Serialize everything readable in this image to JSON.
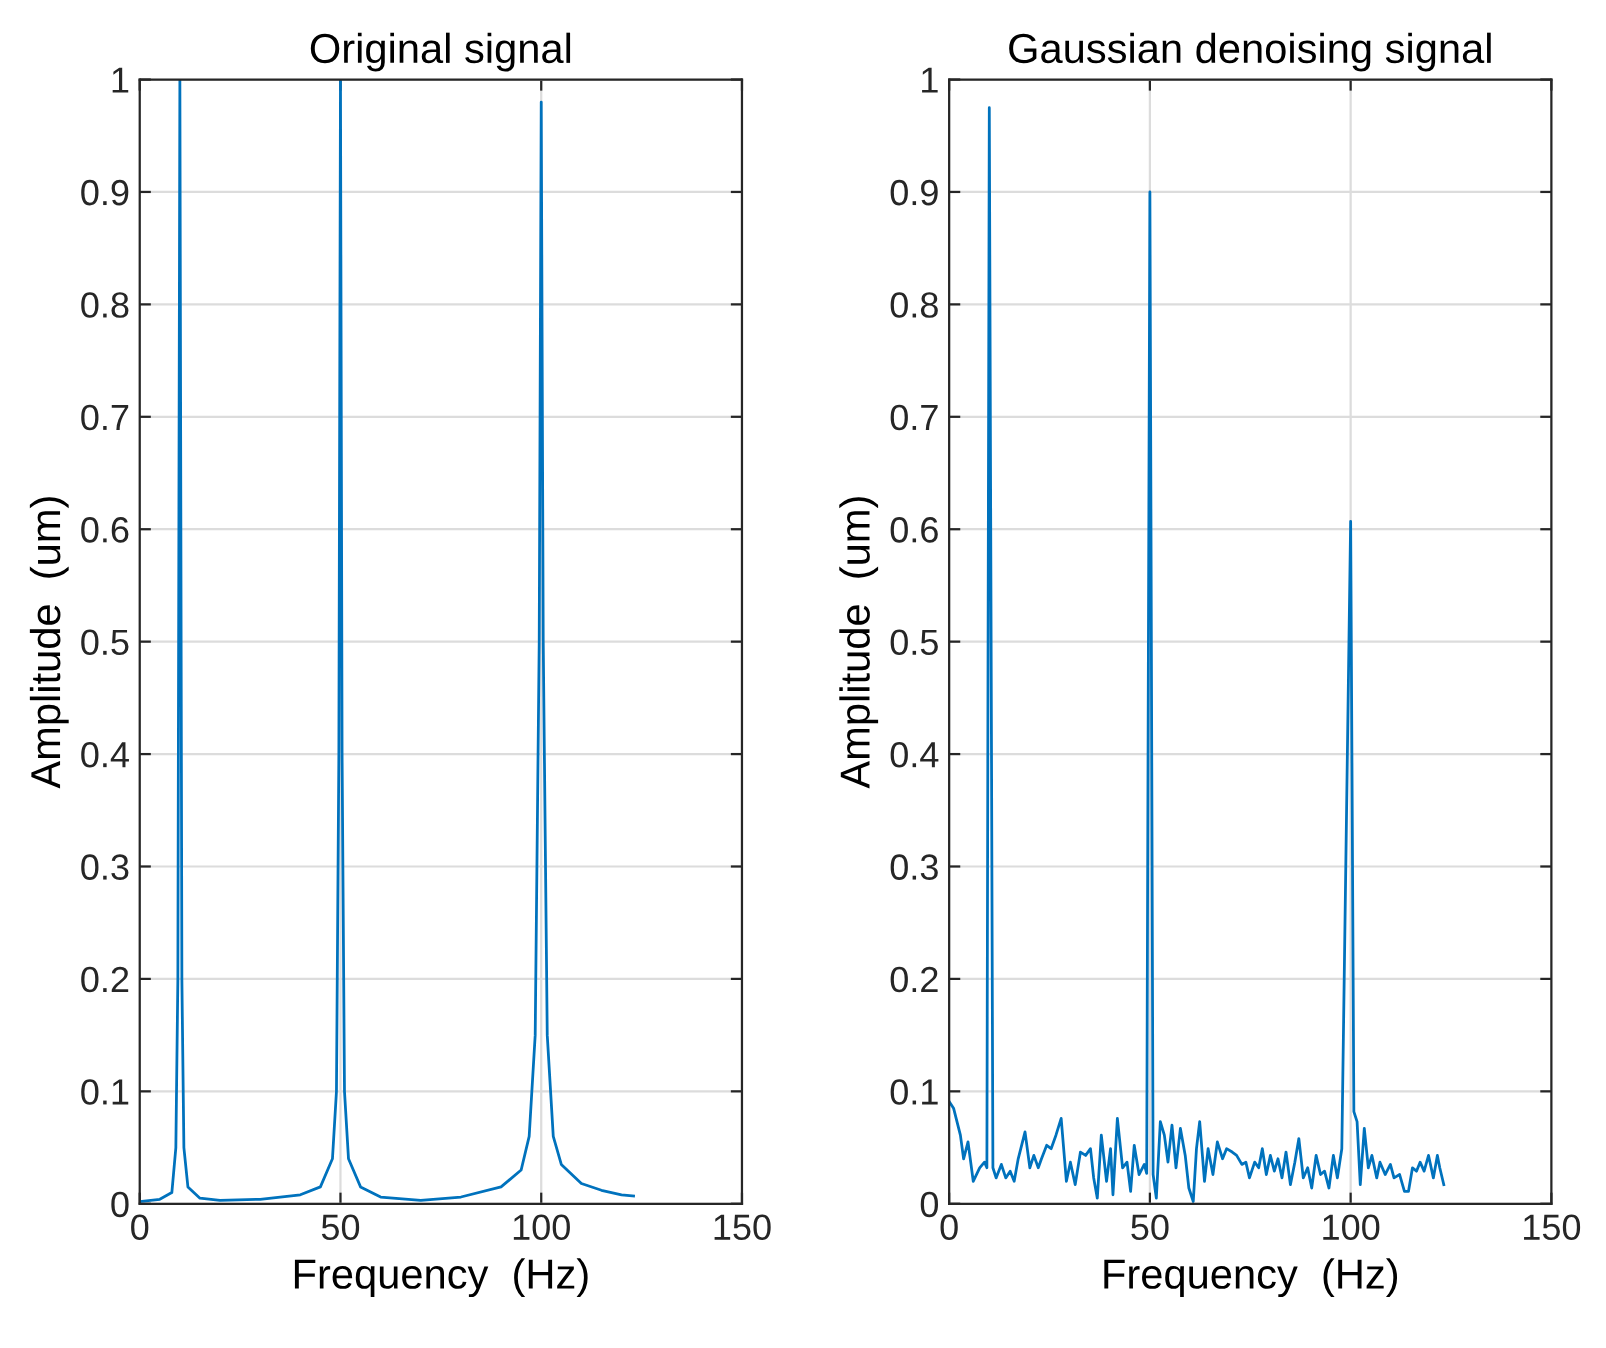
{
  "chart_data": [
    {
      "type": "line",
      "title": "Original signal",
      "xlabel": "Frequency  (Hz)",
      "ylabel": "Amplitude  (um)",
      "xlim": [
        0,
        150
      ],
      "xticks": [
        0,
        50,
        100,
        150
      ],
      "ylim": [
        0,
        1
      ],
      "yticks": [
        0,
        0.1,
        0.2,
        0.3,
        0.4,
        0.5,
        0.6,
        0.7,
        0.8,
        0.9,
        1
      ],
      "grid": true,
      "legend": false,
      "series": [
        {
          "color": "#0072bd",
          "x": [
            0,
            5,
            8,
            9,
            9.5,
            10,
            10.5,
            11,
            12,
            15,
            20,
            30,
            40,
            45,
            48,
            49,
            49.6,
            50,
            50.4,
            51,
            52,
            55,
            60,
            70,
            80,
            90,
            95,
            97,
            98.5,
            99.5,
            100,
            100.5,
            101.5,
            103,
            105,
            110,
            115,
            120,
            123
          ],
          "values": [
            0.002,
            0.004,
            0.01,
            0.05,
            0.2,
            1.0,
            0.2,
            0.05,
            0.015,
            0.005,
            0.003,
            0.004,
            0.008,
            0.015,
            0.04,
            0.1,
            0.4,
            1.0,
            0.4,
            0.1,
            0.04,
            0.015,
            0.006,
            0.003,
            0.006,
            0.015,
            0.03,
            0.06,
            0.15,
            0.5,
            0.98,
            0.5,
            0.15,
            0.06,
            0.035,
            0.018,
            0.012,
            0.008,
            0.007
          ]
        }
      ]
    },
    {
      "type": "line",
      "title": "Gaussian denoising signal",
      "xlabel": "Frequency  (Hz)",
      "ylabel": "Amplitude  (um)",
      "xlim": [
        0,
        150
      ],
      "xticks": [
        0,
        50,
        100,
        150
      ],
      "ylim": [
        0,
        1
      ],
      "yticks": [
        0,
        0.1,
        0.2,
        0.3,
        0.4,
        0.5,
        0.6,
        0.7,
        0.8,
        0.9,
        1
      ],
      "grid": true,
      "legend": false,
      "series": [
        {
          "color": "#0072bd",
          "x": [
            0,
            1.1,
            2.8,
            3.6,
            4.7,
            6.0,
            7.6,
            8.8,
            9.4,
            10,
            10.9,
            11.7,
            13,
            14.1,
            15.2,
            16.2,
            17.2,
            18.9,
            20.1,
            21.1,
            22.2,
            23,
            24.3,
            25.4,
            26.6,
            27.9,
            29.2,
            30.2,
            31.4,
            32.7,
            34,
            35.2,
            36,
            36.9,
            37.9,
            39.2,
            40.2,
            40.8,
            41.9,
            43.2,
            44.3,
            45.2,
            46.1,
            47.3,
            48.6,
            49.2,
            50,
            50.8,
            51.6,
            52.6,
            53.6,
            54.5,
            55.5,
            56.5,
            57.6,
            58.8,
            59.7,
            60.8,
            61.6,
            62.4,
            63.6,
            64.5,
            65.7,
            66.8,
            68.1,
            69.1,
            70.5,
            71.6,
            72.9,
            73.9,
            74.8,
            76.1,
            77.1,
            78,
            79,
            80,
            81,
            81.9,
            82.9,
            83.9,
            85,
            86.1,
            87.1,
            88.2,
            89.3,
            90.3,
            91.4,
            92.5,
            93.5,
            94.6,
            95.7,
            96.7,
            97.8,
            100,
            100.8,
            101.6,
            102.4,
            103.4,
            104.4,
            105.3,
            106.5,
            107.3,
            108.6,
            109.9,
            110.8,
            112.2,
            113.4,
            114.4,
            115.4,
            116.4,
            117.3,
            118.3,
            119.4,
            120.6,
            121.6,
            122.2,
            123.2
          ],
          "values": [
            0.091,
            0.085,
            0.061,
            0.04,
            0.055,
            0.02,
            0.032,
            0.037,
            0.032,
            0.975,
            0.032,
            0.023,
            0.035,
            0.023,
            0.029,
            0.02,
            0.04,
            0.064,
            0.032,
            0.043,
            0.032,
            0.04,
            0.052,
            0.049,
            0.061,
            0.076,
            0.02,
            0.037,
            0.017,
            0.046,
            0.043,
            0.049,
            0.023,
            0.005,
            0.061,
            0.02,
            0.049,
            0.008,
            0.076,
            0.032,
            0.037,
            0.011,
            0.052,
            0.026,
            0.035,
            0.027,
            0.9,
            0.026,
            0.005,
            0.073,
            0.061,
            0.037,
            0.07,
            0.032,
            0.067,
            0.043,
            0.014,
            0.002,
            0.049,
            0.073,
            0.02,
            0.049,
            0.026,
            0.055,
            0.04,
            0.049,
            0.046,
            0.043,
            0.035,
            0.037,
            0.023,
            0.037,
            0.032,
            0.049,
            0.026,
            0.043,
            0.029,
            0.04,
            0.023,
            0.046,
            0.017,
            0.037,
            0.058,
            0.023,
            0.032,
            0.014,
            0.043,
            0.026,
            0.029,
            0.014,
            0.043,
            0.023,
            0.049,
            0.607,
            0.082,
            0.073,
            0.017,
            0.067,
            0.032,
            0.043,
            0.023,
            0.037,
            0.026,
            0.035,
            0.023,
            0.026,
            0.011,
            0.011,
            0.032,
            0.029,
            0.037,
            0.029,
            0.043,
            0.023,
            0.043,
            0.032,
            0.017
          ]
        }
      ]
    }
  ]
}
